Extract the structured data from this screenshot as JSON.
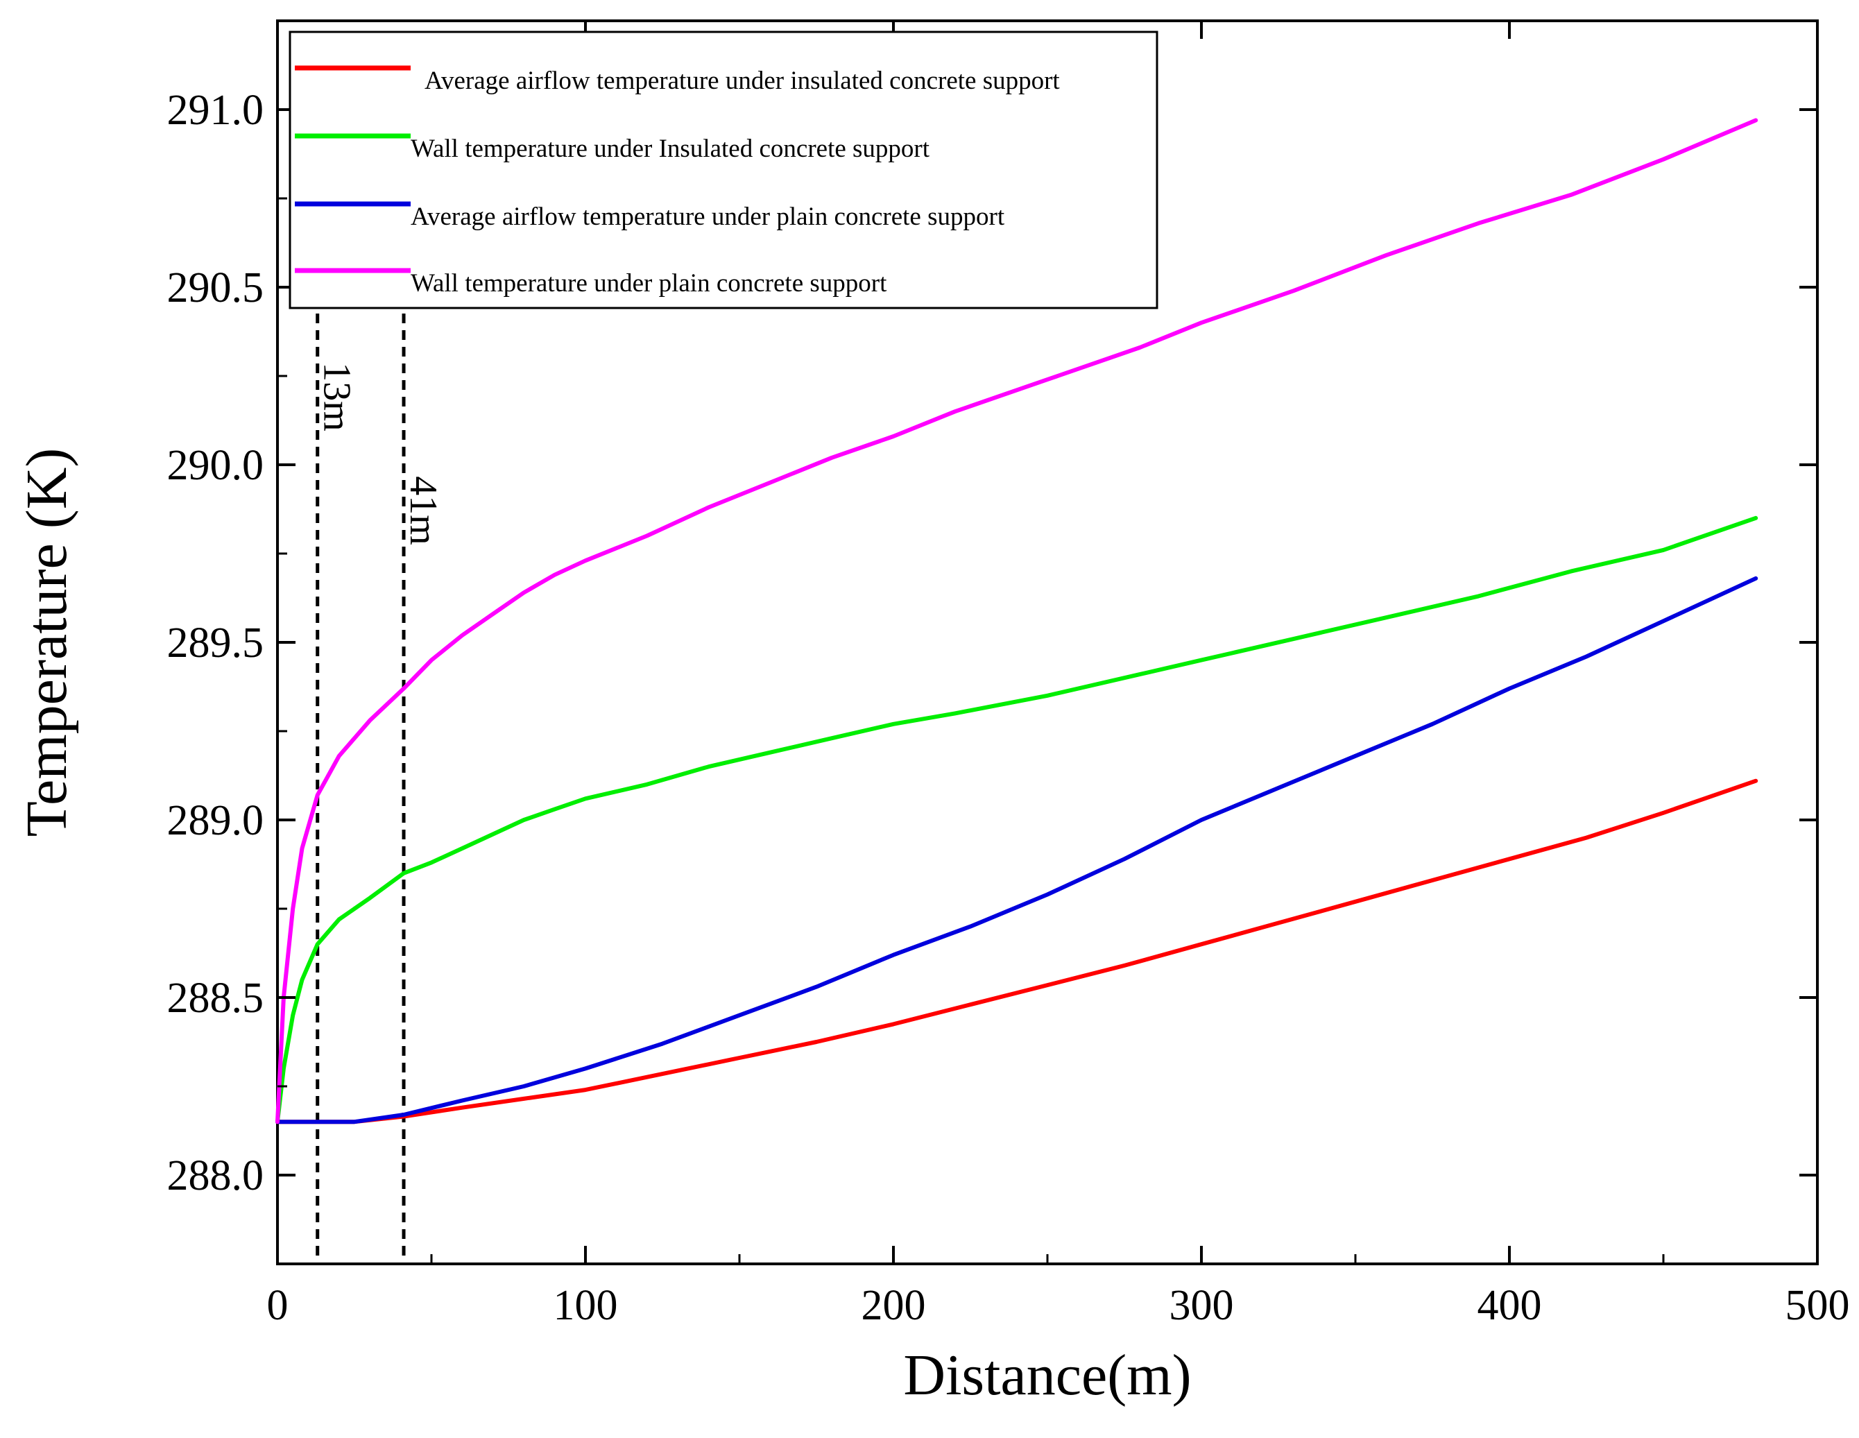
{
  "chart_data": {
    "type": "line",
    "title": "",
    "xlabel": "Distance(m)",
    "ylabel": "Temperature (K)",
    "xlim": [
      0,
      500
    ],
    "ylim": [
      287.75,
      291.25
    ],
    "xticks": [
      0,
      100,
      200,
      300,
      400,
      500
    ],
    "yticks": [
      288.0,
      288.5,
      289.0,
      289.5,
      290.0,
      290.5,
      291.0
    ],
    "xtick_labels": [
      "0",
      "100",
      "200",
      "300",
      "400",
      "500"
    ],
    "ytick_labels": [
      "288.0",
      "288.5",
      "289.0",
      "289.5",
      "290.0",
      "290.5",
      "291.0"
    ],
    "grid": false,
    "legend_position": "top-left",
    "annotations": [
      {
        "label": "13m",
        "x": 13
      },
      {
        "label": "41m",
        "x": 41
      }
    ],
    "series": [
      {
        "name": "Average airflow temperature under insulated concrete support",
        "color": "#ff0000",
        "x": [
          0,
          13,
          25,
          41,
          60,
          80,
          100,
          125,
          150,
          175,
          200,
          225,
          250,
          275,
          300,
          325,
          350,
          375,
          400,
          425,
          450,
          480
        ],
        "values": [
          288.15,
          288.15,
          288.15,
          288.165,
          288.19,
          288.215,
          288.24,
          288.285,
          288.33,
          288.375,
          288.425,
          288.48,
          288.535,
          288.59,
          288.65,
          288.71,
          288.77,
          288.83,
          288.89,
          288.95,
          289.02,
          289.11
        ]
      },
      {
        "name": "Wall temperature under Insulated concrete support",
        "color": "#00ee00",
        "x": [
          0,
          2,
          5,
          8,
          13,
          20,
          30,
          41,
          50,
          60,
          70,
          80,
          90,
          100,
          120,
          140,
          160,
          180,
          200,
          220,
          250,
          280,
          300,
          330,
          360,
          390,
          420,
          450,
          480
        ],
        "values": [
          288.15,
          288.3,
          288.45,
          288.55,
          288.65,
          288.72,
          288.78,
          288.85,
          288.88,
          288.92,
          288.96,
          289.0,
          289.03,
          289.06,
          289.1,
          289.15,
          289.19,
          289.23,
          289.27,
          289.3,
          289.35,
          289.41,
          289.45,
          289.51,
          289.57,
          289.63,
          289.7,
          289.76,
          289.85
        ]
      },
      {
        "name": "Average airflow temperature under plain concrete support",
        "color": "#0000dd",
        "x": [
          0,
          13,
          25,
          41,
          60,
          80,
          100,
          125,
          150,
          175,
          200,
          225,
          250,
          275,
          300,
          325,
          350,
          375,
          400,
          425,
          450,
          480
        ],
        "values": [
          288.15,
          288.15,
          288.15,
          288.17,
          288.21,
          288.25,
          288.3,
          288.37,
          288.45,
          288.53,
          288.62,
          288.7,
          288.79,
          288.89,
          289.0,
          289.09,
          289.18,
          289.27,
          289.37,
          289.46,
          289.56,
          289.68
        ]
      },
      {
        "name": "Wall temperature under plain concrete support",
        "color": "#ff00ff",
        "x": [
          0,
          2,
          5,
          8,
          13,
          20,
          30,
          41,
          50,
          60,
          70,
          80,
          90,
          100,
          120,
          140,
          160,
          180,
          200,
          220,
          250,
          280,
          300,
          330,
          360,
          390,
          420,
          450,
          480
        ],
        "values": [
          288.15,
          288.5,
          288.75,
          288.92,
          289.07,
          289.18,
          289.28,
          289.37,
          289.45,
          289.52,
          289.58,
          289.64,
          289.69,
          289.73,
          289.8,
          289.88,
          289.95,
          290.02,
          290.08,
          290.15,
          290.24,
          290.33,
          290.4,
          290.49,
          290.59,
          290.68,
          290.76,
          290.86,
          290.97
        ]
      }
    ]
  }
}
